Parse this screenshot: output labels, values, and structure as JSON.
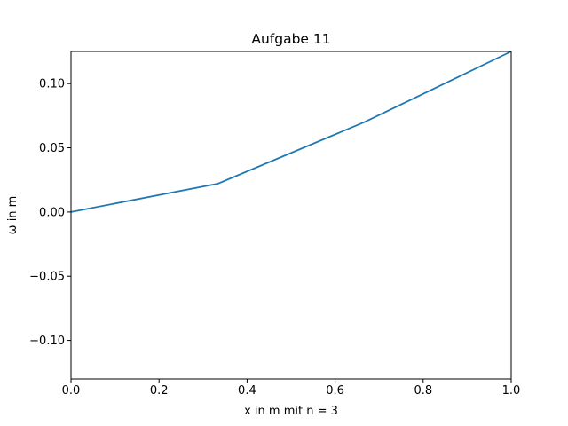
{
  "chart_data": {
    "type": "line",
    "title": "Aufgabe 11",
    "xlabel": "x in m mit n = 3",
    "ylabel": "ω in m",
    "xlim": [
      0.0,
      1.0
    ],
    "ylim": [
      -0.13,
      0.125
    ],
    "grid": false,
    "series": [
      {
        "color": "#1f77b4",
        "x": [
          0.0,
          0.3333,
          0.6667,
          1.0
        ],
        "y": [
          0.0,
          0.022,
          0.07,
          0.125
        ]
      }
    ],
    "xticks": [
      {
        "value": 0.0,
        "label": "0.0"
      },
      {
        "value": 0.2,
        "label": "0.2"
      },
      {
        "value": 0.4,
        "label": "0.4"
      },
      {
        "value": 0.6,
        "label": "0.6"
      },
      {
        "value": 0.8,
        "label": "0.8"
      },
      {
        "value": 1.0,
        "label": "1.0"
      }
    ],
    "yticks": [
      {
        "value": -0.1,
        "label": "−0.10"
      },
      {
        "value": -0.05,
        "label": "−0.05"
      },
      {
        "value": 0.0,
        "label": "0.00"
      },
      {
        "value": 0.05,
        "label": "0.05"
      },
      {
        "value": 0.1,
        "label": "0.10"
      }
    ]
  }
}
